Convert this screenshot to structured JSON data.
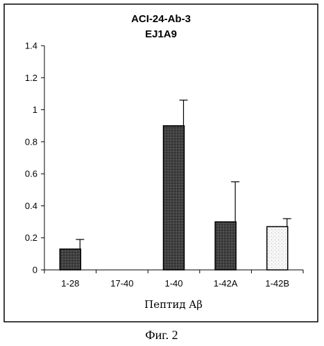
{
  "chart_data": {
    "type": "bar",
    "title": "ACI-24-Ab-3",
    "subtitle": "EJ1A9",
    "xlabel": "Пептид Aβ",
    "ylabel": "",
    "categories": [
      "1-28",
      "17-40",
      "1-40",
      "1-42A",
      "1-42B"
    ],
    "values": [
      0.13,
      0,
      0.9,
      0.3,
      0.27
    ],
    "errors": [
      0.06,
      0,
      0.16,
      0.25,
      0.05
    ],
    "ylim": [
      0,
      1.4
    ],
    "yticks": [
      0,
      0.2,
      0.4,
      0.6,
      0.8,
      1,
      1.2,
      1.4
    ],
    "ytick_labels": [
      "0",
      "0.2",
      "0.4",
      "0.6",
      "0.8",
      "1",
      "1.2",
      "1.4"
    ],
    "bar_colors": [
      "#3a3a3a",
      "#3a3a3a",
      "#3a3a3a",
      "#3a3a3a",
      "#f4f4f4"
    ],
    "grid": false,
    "legend": "none"
  },
  "caption": "Фиг. 2"
}
